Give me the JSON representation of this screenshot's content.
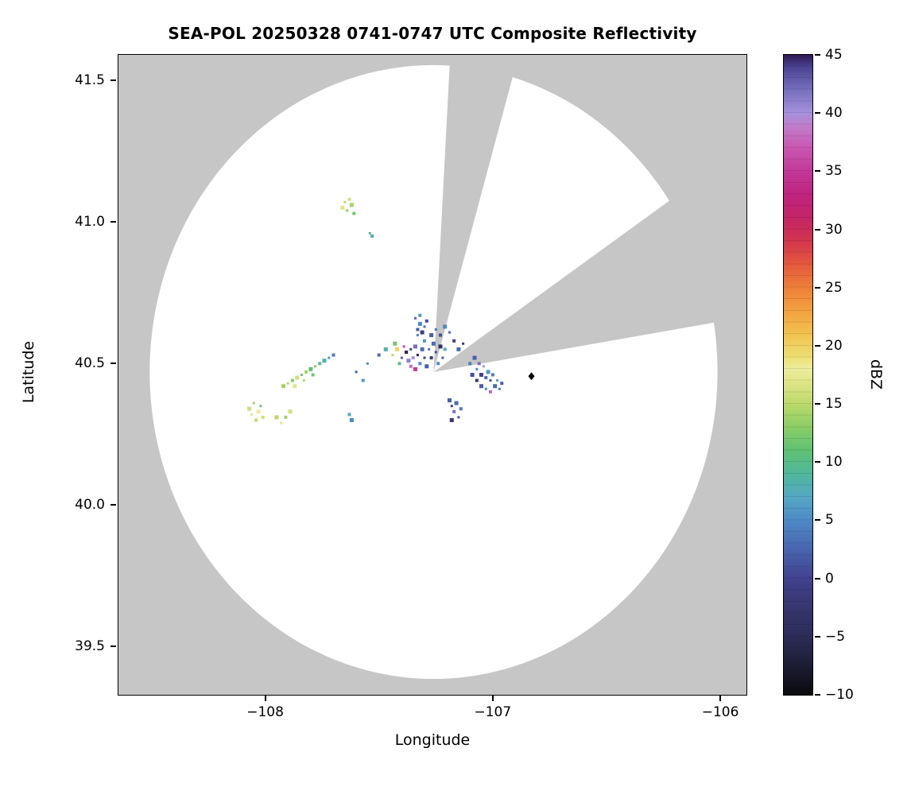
{
  "chart_data": {
    "type": "heatmap",
    "title": "SEA-POL 20250328 0741-0747 UTC Composite Reflectivity",
    "xlabel": "Longitude",
    "ylabel": "Latitude",
    "xlim": [
      -108.645,
      -105.885
    ],
    "ylim": [
      39.33,
      41.59
    ],
    "grid": false,
    "background_color": "#c6c6c6",
    "x_ticks": {
      "values": [
        -108,
        -107,
        -106
      ],
      "labels": [
        "−108",
        "−107",
        "−106"
      ]
    },
    "y_ticks": {
      "values": [
        39.5,
        40.0,
        40.5,
        41.0,
        41.5
      ],
      "labels": [
        "39.5",
        "40.0",
        "40.5",
        "41.0",
        "41.5"
      ]
    },
    "coverage": {
      "center": [
        -107.26,
        40.47
      ],
      "radius_lon": 1.248,
      "radius_lat": 1.084,
      "fill": "#ffffff"
    },
    "blocked_sectors": [
      {
        "az_start": 3,
        "az_end": 16
      },
      {
        "az_start": 54,
        "az_end": 80
      }
    ],
    "radar_marker": {
      "lon": -106.83,
      "lat": 40.455,
      "symbol": "diamond",
      "color": "#000000"
    },
    "colorbar": {
      "label": "dBZ",
      "min": -10,
      "max": 45,
      "tick_values": [
        45,
        40,
        35,
        30,
        25,
        20,
        15,
        10,
        5,
        0,
        -5,
        -10
      ],
      "tick_labels": [
        "45",
        "40",
        "35",
        "30",
        "25",
        "20",
        "15",
        "10",
        "5",
        "0",
        "−5",
        "−10"
      ],
      "stops": [
        [
          -10,
          "#0a0a0f"
        ],
        [
          -7,
          "#20203a"
        ],
        [
          -5,
          "#2c2c58"
        ],
        [
          -2,
          "#383874"
        ],
        [
          0,
          "#41418f"
        ],
        [
          3,
          "#4a6cb4"
        ],
        [
          5,
          "#4f89c6"
        ],
        [
          7,
          "#55a8c4"
        ],
        [
          9,
          "#51b79b"
        ],
        [
          11,
          "#5fc173"
        ],
        [
          13,
          "#8bcd66"
        ],
        [
          15,
          "#bcd96b"
        ],
        [
          17,
          "#e2e78a"
        ],
        [
          18,
          "#ecec9e"
        ],
        [
          19,
          "#eedf74"
        ],
        [
          21,
          "#f2c24f"
        ],
        [
          23,
          "#f3a140"
        ],
        [
          25,
          "#ee7f3a"
        ],
        [
          27,
          "#e4583e"
        ],
        [
          29,
          "#d2354e"
        ],
        [
          31,
          "#c32566"
        ],
        [
          33,
          "#bf247f"
        ],
        [
          35,
          "#c33898"
        ],
        [
          37,
          "#c857b1"
        ],
        [
          39,
          "#c07fcd"
        ],
        [
          40,
          "#a591dc"
        ],
        [
          42,
          "#776fbd"
        ],
        [
          44,
          "#4a4190"
        ],
        [
          45,
          "#2d1b52"
        ]
      ]
    },
    "echoes": [
      [
        -107.4,
        40.52,
        43
      ],
      [
        -107.38,
        40.54,
        45
      ],
      [
        -107.37,
        40.51,
        41
      ],
      [
        -107.36,
        40.55,
        44
      ],
      [
        -107.35,
        40.52,
        40
      ],
      [
        -107.34,
        40.56,
        42
      ],
      [
        -107.33,
        40.53,
        45
      ],
      [
        -107.36,
        40.49,
        38
      ],
      [
        -107.34,
        40.48,
        35
      ],
      [
        -107.39,
        40.56,
        36
      ],
      [
        -107.32,
        40.5,
        5
      ],
      [
        -107.31,
        40.55,
        3
      ],
      [
        -107.3,
        40.52,
        0
      ],
      [
        -107.3,
        40.58,
        6
      ],
      [
        -107.29,
        40.49,
        2
      ],
      [
        -107.28,
        40.55,
        4
      ],
      [
        -107.27,
        40.52,
        -2
      ],
      [
        -107.26,
        40.57,
        3
      ],
      [
        -107.25,
        40.54,
        1
      ],
      [
        -107.24,
        40.5,
        5
      ],
      [
        -107.23,
        40.56,
        -4
      ],
      [
        -107.22,
        40.52,
        2
      ],
      [
        -107.21,
        40.55,
        7
      ],
      [
        -107.42,
        40.55,
        20
      ],
      [
        -107.44,
        40.53,
        15
      ],
      [
        -107.41,
        40.5,
        10
      ],
      [
        -107.43,
        40.57,
        12
      ],
      [
        -107.33,
        40.6,
        4
      ],
      [
        -107.33,
        40.62,
        2
      ],
      [
        -107.32,
        40.64,
        5
      ],
      [
        -107.34,
        40.66,
        3
      ],
      [
        -107.32,
        40.67,
        6
      ],
      [
        -107.31,
        40.61,
        -1
      ],
      [
        -107.3,
        40.63,
        3
      ],
      [
        -107.29,
        40.65,
        1
      ],
      [
        -107.27,
        40.6,
        2
      ],
      [
        -107.25,
        40.62,
        4
      ],
      [
        -107.23,
        40.6,
        1
      ],
      [
        -107.21,
        40.63,
        5
      ],
      [
        -107.19,
        40.61,
        3
      ],
      [
        -107.17,
        40.58,
        0
      ],
      [
        -107.15,
        40.55,
        3
      ],
      [
        -107.13,
        40.57,
        -2
      ],
      [
        -107.1,
        40.5,
        4
      ],
      [
        -107.08,
        40.52,
        2
      ],
      [
        -107.07,
        40.48,
        5
      ],
      [
        -107.06,
        40.5,
        42
      ],
      [
        -107.05,
        40.46,
        44
      ],
      [
        -107.04,
        40.49,
        40
      ],
      [
        -107.03,
        40.45,
        3
      ],
      [
        -107.02,
        40.47,
        6
      ],
      [
        -107.01,
        40.44,
        1
      ],
      [
        -107.0,
        40.46,
        4
      ],
      [
        -107.05,
        40.42,
        2
      ],
      [
        -107.03,
        40.41,
        5
      ],
      [
        -107.01,
        40.4,
        38
      ],
      [
        -106.99,
        40.42,
        3
      ],
      [
        -106.98,
        40.44,
        6
      ],
      [
        -107.07,
        40.44,
        -2
      ],
      [
        -107.09,
        40.46,
        1
      ],
      [
        -106.97,
        40.41,
        4
      ],
      [
        -106.96,
        40.43,
        2
      ],
      [
        -107.92,
        40.42,
        14
      ],
      [
        -107.9,
        40.43,
        15
      ],
      [
        -107.88,
        40.44,
        13
      ],
      [
        -107.86,
        40.45,
        16
      ],
      [
        -107.84,
        40.46,
        12
      ],
      [
        -107.82,
        40.47,
        14
      ],
      [
        -107.8,
        40.48,
        11
      ],
      [
        -107.78,
        40.49,
        13
      ],
      [
        -107.76,
        40.5,
        10
      ],
      [
        -107.74,
        40.51,
        8
      ],
      [
        -107.72,
        40.52,
        6
      ],
      [
        -107.7,
        40.53,
        4
      ],
      [
        -107.87,
        40.42,
        17
      ],
      [
        -107.83,
        40.44,
        15
      ],
      [
        -107.79,
        40.46,
        12
      ],
      [
        -108.07,
        40.34,
        16
      ],
      [
        -108.06,
        40.32,
        17
      ],
      [
        -108.04,
        40.3,
        15
      ],
      [
        -108.03,
        40.33,
        18
      ],
      [
        -108.05,
        40.36,
        14
      ],
      [
        -108.01,
        40.31,
        16
      ],
      [
        -107.95,
        40.31,
        15
      ],
      [
        -107.93,
        40.29,
        17
      ],
      [
        -107.91,
        40.31,
        14
      ],
      [
        -107.89,
        40.33,
        16
      ],
      [
        -108.02,
        40.35,
        12
      ],
      [
        -107.63,
        40.32,
        7
      ],
      [
        -107.62,
        40.3,
        5
      ],
      [
        -107.65,
        41.07,
        15
      ],
      [
        -107.63,
        41.08,
        16
      ],
      [
        -107.62,
        41.06,
        14
      ],
      [
        -107.64,
        41.04,
        13
      ],
      [
        -107.61,
        41.03,
        12
      ],
      [
        -107.66,
        41.05,
        17
      ],
      [
        -107.54,
        40.96,
        9
      ],
      [
        -107.53,
        40.95,
        7
      ],
      [
        -107.19,
        40.37,
        2
      ],
      [
        -107.18,
        40.35,
        0
      ],
      [
        -107.17,
        40.33,
        42
      ],
      [
        -107.16,
        40.36,
        3
      ],
      [
        -107.15,
        40.31,
        1
      ],
      [
        -107.14,
        40.34,
        4
      ],
      [
        -107.18,
        40.3,
        -2
      ],
      [
        -107.55,
        40.5,
        5
      ],
      [
        -107.5,
        40.53,
        3
      ],
      [
        -107.47,
        40.55,
        8
      ],
      [
        -107.6,
        40.47,
        2
      ],
      [
        -107.57,
        40.44,
        6
      ]
    ]
  }
}
